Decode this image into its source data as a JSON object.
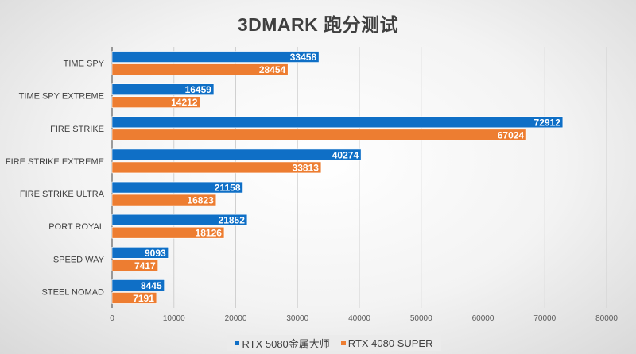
{
  "chart_data": {
    "type": "bar",
    "orientation": "horizontal",
    "title": "3DMARK 跑分测试",
    "categories": [
      "TIME SPY",
      "TIME SPY EXTREME",
      "FIRE STRIKE",
      "FIRE STRIKE EXTREME",
      "FIRE STRIKE ULTRA",
      "PORT ROYAL",
      "SPEED WAY",
      "STEEL NOMAD"
    ],
    "series": [
      {
        "name": "RTX 5080金属大师",
        "color": "#0f6fc6",
        "values": [
          33458,
          16459,
          72912,
          40274,
          21158,
          21852,
          9093,
          8445
        ]
      },
      {
        "name": "RTX 4080 SUPER",
        "color": "#ed7d31",
        "values": [
          28454,
          14212,
          67024,
          33813,
          16823,
          18126,
          7417,
          7191
        ]
      }
    ],
    "xlim": [
      0,
      80000
    ],
    "xticks": [
      "0",
      "10000",
      "20000",
      "30000",
      "40000",
      "50000",
      "60000",
      "70000",
      "80000"
    ],
    "grid": true,
    "data_labels": true,
    "legend_position": "bottom"
  }
}
